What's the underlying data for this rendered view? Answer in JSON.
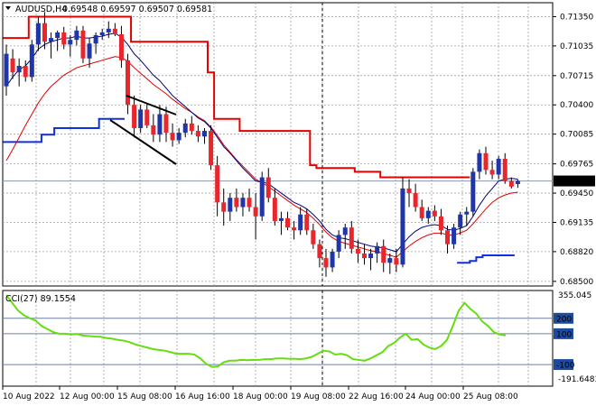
{
  "header": {
    "symbol": "AUDUSD,H4",
    "ohlc": "0.69548 0.69597 0.69507 0.69581"
  },
  "indicator": {
    "label": "CCI(27) 89.1554"
  },
  "chart_data": [
    {
      "type": "candlestick",
      "title": "AUDUSD,H4 0.69548 0.69597 0.69507 0.69581",
      "ylim": [
        0.6845,
        0.715
      ],
      "price_ticks": [
        "0.71350",
        "0.71035",
        "0.70715",
        "0.70400",
        "0.70085",
        "0.69765",
        "0.69450",
        "0.69135",
        "0.68820",
        "0.68500"
      ],
      "price_tick_values": [
        0.7135,
        0.71035,
        0.70715,
        0.704,
        0.70085,
        0.69765,
        0.6945,
        0.69135,
        0.6882,
        0.685
      ],
      "current_price_label": "0.69581",
      "current_price": 0.69581,
      "x_labels": [
        "10 Aug 2022",
        "12 Aug 00:00",
        "15 Aug 08:00",
        "16 Aug 16:00",
        "18 Aug 00:00",
        "19 Aug 08:00",
        "22 Aug 16:00",
        "24 Aug 00:00",
        "25 Aug 08:00"
      ],
      "colors": {
        "up": "#1f35a8",
        "down": "#e8262b",
        "wick": "#000000",
        "upper_band": "#e80000",
        "lower_band": "#1030e0",
        "ma_fast": "#000080",
        "ma_slow": "#e00000",
        "cci": "#66dd11",
        "grid": "#a0a0a0"
      },
      "candles": [
        [
          0.706,
          0.7105,
          0.705,
          0.7095
        ],
        [
          0.709,
          0.71,
          0.7068,
          0.7075
        ],
        [
          0.7075,
          0.709,
          0.706,
          0.7082
        ],
        [
          0.7082,
          0.7088,
          0.7065,
          0.707
        ],
        [
          0.707,
          0.711,
          0.7065,
          0.7105
        ],
        [
          0.7105,
          0.7135,
          0.7098,
          0.7128
        ],
        [
          0.7128,
          0.714,
          0.71,
          0.7108
        ],
        [
          0.7108,
          0.7118,
          0.709,
          0.7112
        ],
        [
          0.7112,
          0.712,
          0.7098,
          0.7118
        ],
        [
          0.7118,
          0.7124,
          0.71,
          0.7105
        ],
        [
          0.7105,
          0.7115,
          0.7092,
          0.711
        ],
        [
          0.711,
          0.7125,
          0.7104,
          0.712
        ],
        [
          0.712,
          0.7125,
          0.7085,
          0.709
        ],
        [
          0.709,
          0.7112,
          0.708,
          0.7106
        ],
        [
          0.7106,
          0.7118,
          0.7095,
          0.7115
        ],
        [
          0.7115,
          0.7122,
          0.711,
          0.7118
        ],
        [
          0.7118,
          0.713,
          0.7112,
          0.7122
        ],
        [
          0.7122,
          0.7128,
          0.7114,
          0.7116
        ],
        [
          0.7116,
          0.7125,
          0.708,
          0.7088
        ],
        [
          0.7088,
          0.7095,
          0.703,
          0.704
        ],
        [
          0.704,
          0.705,
          0.7005,
          0.7015
        ],
        [
          0.7015,
          0.704,
          0.701,
          0.7035
        ],
        [
          0.7035,
          0.7042,
          0.7015,
          0.7018
        ],
        [
          0.7018,
          0.703,
          0.7,
          0.7008
        ],
        [
          0.7008,
          0.704,
          0.7,
          0.703
        ],
        [
          0.703,
          0.7038,
          0.7,
          0.701
        ],
        [
          0.701,
          0.702,
          0.6995,
          0.7002
        ],
        [
          0.7002,
          0.7015,
          0.6998,
          0.701
        ],
        [
          0.701,
          0.7025,
          0.7005,
          0.702
        ],
        [
          0.702,
          0.7028,
          0.7008,
          0.7012
        ],
        [
          0.7012,
          0.7018,
          0.7,
          0.7006
        ],
        [
          0.7006,
          0.7015,
          0.6998,
          0.7012
        ],
        [
          0.7012,
          0.7018,
          0.697,
          0.6975
        ],
        [
          0.6975,
          0.6985,
          0.692,
          0.6935
        ],
        [
          0.6935,
          0.695,
          0.691,
          0.6925
        ],
        [
          0.6925,
          0.6945,
          0.6915,
          0.694
        ],
        [
          0.694,
          0.695,
          0.6925,
          0.693
        ],
        [
          0.693,
          0.6945,
          0.692,
          0.694
        ],
        [
          0.694,
          0.695,
          0.6925,
          0.693
        ],
        [
          0.693,
          0.6945,
          0.6895,
          0.692
        ],
        [
          0.692,
          0.6968,
          0.6915,
          0.6962
        ],
        [
          0.6962,
          0.6972,
          0.6935,
          0.694
        ],
        [
          0.694,
          0.695,
          0.691,
          0.6915
        ],
        [
          0.6915,
          0.6925,
          0.69,
          0.6918
        ],
        [
          0.6918,
          0.6925,
          0.6905,
          0.6908
        ],
        [
          0.6908,
          0.6915,
          0.6895,
          0.6905
        ],
        [
          0.6905,
          0.693,
          0.69,
          0.6922
        ],
        [
          0.6922,
          0.6928,
          0.69,
          0.6905
        ],
        [
          0.6905,
          0.6912,
          0.6885,
          0.689
        ],
        [
          0.689,
          0.6895,
          0.6865,
          0.6875
        ],
        [
          0.6875,
          0.6885,
          0.6855,
          0.6865
        ],
        [
          0.6865,
          0.6885,
          0.686,
          0.6882
        ],
        [
          0.6882,
          0.6905,
          0.6875,
          0.69
        ],
        [
          0.69,
          0.6912,
          0.6885,
          0.6908
        ],
        [
          0.6908,
          0.6915,
          0.688,
          0.6885
        ],
        [
          0.6885,
          0.6895,
          0.687,
          0.688
        ],
        [
          0.688,
          0.689,
          0.6868,
          0.6875
        ],
        [
          0.6875,
          0.6885,
          0.6862,
          0.688
        ],
        [
          0.688,
          0.6892,
          0.687,
          0.6888
        ],
        [
          0.6888,
          0.6895,
          0.686,
          0.687
        ],
        [
          0.687,
          0.688,
          0.6858,
          0.6875
        ],
        [
          0.6875,
          0.6885,
          0.686,
          0.6868
        ],
        [
          0.6868,
          0.6962,
          0.6865,
          0.695
        ],
        [
          0.695,
          0.696,
          0.693,
          0.6945
        ],
        [
          0.6945,
          0.6955,
          0.6925,
          0.693
        ],
        [
          0.693,
          0.6938,
          0.6915,
          0.6918
        ],
        [
          0.6918,
          0.693,
          0.6912,
          0.6926
        ],
        [
          0.6926,
          0.6932,
          0.6915,
          0.692
        ],
        [
          0.692,
          0.6928,
          0.69,
          0.6905
        ],
        [
          0.6905,
          0.691,
          0.688,
          0.689
        ],
        [
          0.689,
          0.6912,
          0.6885,
          0.6908
        ],
        [
          0.6908,
          0.6925,
          0.69,
          0.6922
        ],
        [
          0.6922,
          0.693,
          0.691,
          0.6925
        ],
        [
          0.6925,
          0.6972,
          0.692,
          0.6968
        ],
        [
          0.6968,
          0.6992,
          0.696,
          0.6988
        ],
        [
          0.6988,
          0.6995,
          0.6965,
          0.697
        ],
        [
          0.697,
          0.698,
          0.696,
          0.6965
        ],
        [
          0.6965,
          0.6985,
          0.696,
          0.6982
        ],
        [
          0.6982,
          0.6988,
          0.6955,
          0.6958
        ],
        [
          0.6958,
          0.6962,
          0.695,
          0.6952
        ],
        [
          0.69548,
          0.69597,
          0.69507,
          0.69581
        ]
      ],
      "upper_band": [
        0.7112,
        0.7112,
        0.7112,
        0.7112,
        0.7135,
        0.7135,
        0.7135,
        0.7135,
        0.7135,
        0.7135,
        0.7135,
        0.7135,
        0.7135,
        0.7135,
        0.7135,
        0.7135,
        0.7135,
        0.7135,
        0.7135,
        0.7135,
        0.7108,
        0.7108,
        0.7108,
        0.7108,
        0.7108,
        0.7108,
        0.7108,
        0.7108,
        0.7108,
        0.7108,
        0.7108,
        0.7108,
        0.7075,
        0.7025,
        0.7025,
        0.7025,
        0.7025,
        0.7012,
        0.7012,
        0.7012,
        0.7012,
        0.7012,
        0.7012,
        0.7012,
        0.7012,
        0.7012,
        0.7012,
        0.7012,
        0.6975,
        0.6972,
        0.6972,
        0.6972,
        0.6972,
        0.6972,
        0.6972,
        0.6968,
        0.6968,
        0.6968,
        0.6968,
        0.6962,
        0.6962,
        0.6962,
        0.6962,
        0.6962,
        0.6962,
        0.6962,
        0.6962,
        0.6962,
        0.6962,
        0.6962,
        0.6962,
        0.6962,
        0.6962
      ],
      "lower_band_a": [
        0.7,
        0.7,
        0.7,
        0.7,
        0.7,
        0.7,
        0.7008,
        0.7008,
        0.7015,
        0.7015,
        0.7015,
        0.7015,
        0.7015,
        0.7015,
        0.7015,
        0.7025,
        0.7025,
        0.7025,
        0.7025
      ],
      "lower_band_b": [
        0.687,
        0.687,
        0.6872,
        0.6876,
        0.6878,
        0.6878,
        0.6878,
        0.6878,
        0.6878
      ],
      "ma_fast": [
        0.706,
        0.707,
        0.7078,
        0.7082,
        0.709,
        0.71,
        0.7105,
        0.7108,
        0.711,
        0.7112,
        0.7112,
        0.7114,
        0.7112,
        0.7112,
        0.7113,
        0.7114,
        0.7116,
        0.7117,
        0.7113,
        0.7105,
        0.7095,
        0.7088,
        0.708,
        0.7072,
        0.7066,
        0.7058,
        0.705,
        0.7044,
        0.7038,
        0.7032,
        0.7026,
        0.7022,
        0.7015,
        0.7005,
        0.6995,
        0.6988,
        0.698,
        0.6972,
        0.6965,
        0.6958,
        0.6957,
        0.6955,
        0.695,
        0.6945,
        0.694,
        0.6935,
        0.6932,
        0.6928,
        0.6922,
        0.6915,
        0.6906,
        0.69,
        0.6897,
        0.6896,
        0.6894,
        0.6892,
        0.689,
        0.6888,
        0.6887,
        0.6886,
        0.6884,
        0.6882,
        0.689,
        0.6898,
        0.6904,
        0.6908,
        0.691,
        0.6911,
        0.691,
        0.6906,
        0.6905,
        0.6907,
        0.691,
        0.692,
        0.6932,
        0.6942,
        0.695,
        0.6958,
        0.696,
        0.6961,
        0.696
      ],
      "ma_slow": [
        0.698,
        0.6992,
        0.7005,
        0.7018,
        0.703,
        0.7042,
        0.7052,
        0.706,
        0.7066,
        0.7072,
        0.7076,
        0.708,
        0.7082,
        0.7084,
        0.7086,
        0.7088,
        0.709,
        0.7092,
        0.7091,
        0.7087,
        0.708,
        0.7074,
        0.7068,
        0.7062,
        0.7057,
        0.7052,
        0.7046,
        0.7041,
        0.7036,
        0.7032,
        0.7027,
        0.7023,
        0.7016,
        0.7007,
        0.6997,
        0.6989,
        0.6981,
        0.6974,
        0.6967,
        0.696,
        0.6956,
        0.6952,
        0.6947,
        0.6942,
        0.6937,
        0.6932,
        0.6928,
        0.6924,
        0.6918,
        0.6911,
        0.6903,
        0.6897,
        0.6893,
        0.6891,
        0.6889,
        0.6887,
        0.6885,
        0.6883,
        0.6882,
        0.688,
        0.6878,
        0.6876,
        0.6882,
        0.6888,
        0.6893,
        0.6897,
        0.69,
        0.6902,
        0.6902,
        0.69,
        0.69,
        0.6902,
        0.6905,
        0.6912,
        0.692,
        0.6928,
        0.6935,
        0.694,
        0.6943,
        0.6945,
        0.6946
      ]
    },
    {
      "type": "line",
      "name": "CCI(27)",
      "label": "CCI(27) 89.1554",
      "ylim": [
        -240,
        380
      ],
      "scale_labels": [
        "355.045",
        "200",
        "100",
        "-100",
        "-191.6483"
      ],
      "scale_values": [
        355.045,
        200,
        100,
        -100,
        -191.6483
      ],
      "level_lines": [
        200,
        100,
        -100
      ],
      "values": [
        350,
        300,
        250,
        220,
        200,
        185,
        150,
        130,
        110,
        100,
        100,
        95,
        98,
        88,
        85,
        82,
        80,
        72,
        68,
        60,
        55,
        45,
        30,
        20,
        10,
        0,
        -5,
        -10,
        -20,
        -30,
        -30,
        -30,
        -35,
        -60,
        -95,
        -115,
        -112,
        -85,
        -75,
        -75,
        -70,
        -72,
        -70,
        -70,
        -65,
        -65,
        -60,
        -60,
        -62,
        -62,
        -65,
        -60,
        -50,
        -30,
        -10,
        -15,
        -35,
        -30,
        -40,
        -65,
        -70,
        -75,
        -60,
        -40,
        -20,
        20,
        40,
        75,
        100,
        60,
        65,
        30,
        10,
        0,
        20,
        60,
        150,
        250,
        300,
        260,
        230,
        180,
        150,
        110,
        95,
        89
      ]
    }
  ]
}
